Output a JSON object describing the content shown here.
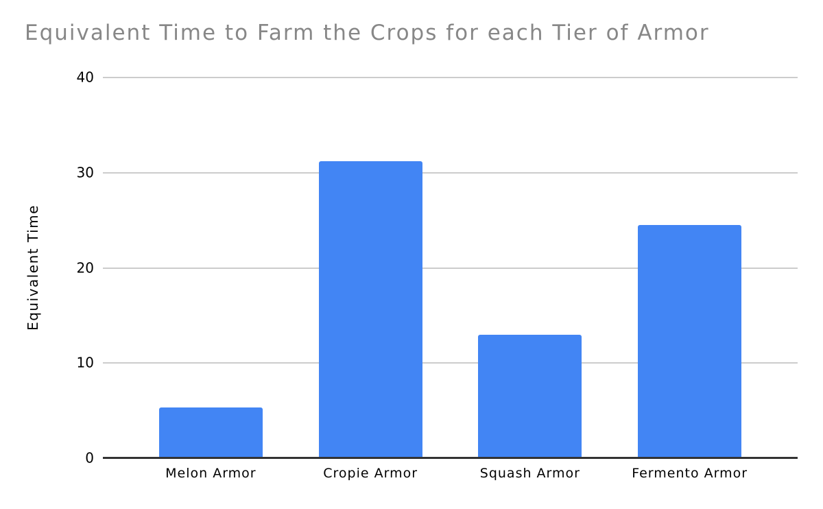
{
  "chart_data": {
    "type": "bar",
    "title": "Equivalent Time to Farm the Crops for each Tier of Armor",
    "xlabel": "",
    "ylabel": "Equivalent Time",
    "categories": [
      "Melon Armor",
      "Cropie Armor",
      "Squash Armor",
      "Fermento Armor"
    ],
    "values": [
      5.3,
      31.2,
      13,
      24.5
    ],
    "ylim": [
      0,
      40
    ],
    "yticks": [
      0,
      10,
      20,
      30,
      40
    ],
    "grid": true,
    "legend": false,
    "colors": {
      "bar": "#4285f4",
      "title": "#878787",
      "gridline": "#cccccc",
      "axis_line": "#333333",
      "tick_label": "#000000",
      "background": "#ffffff"
    }
  }
}
